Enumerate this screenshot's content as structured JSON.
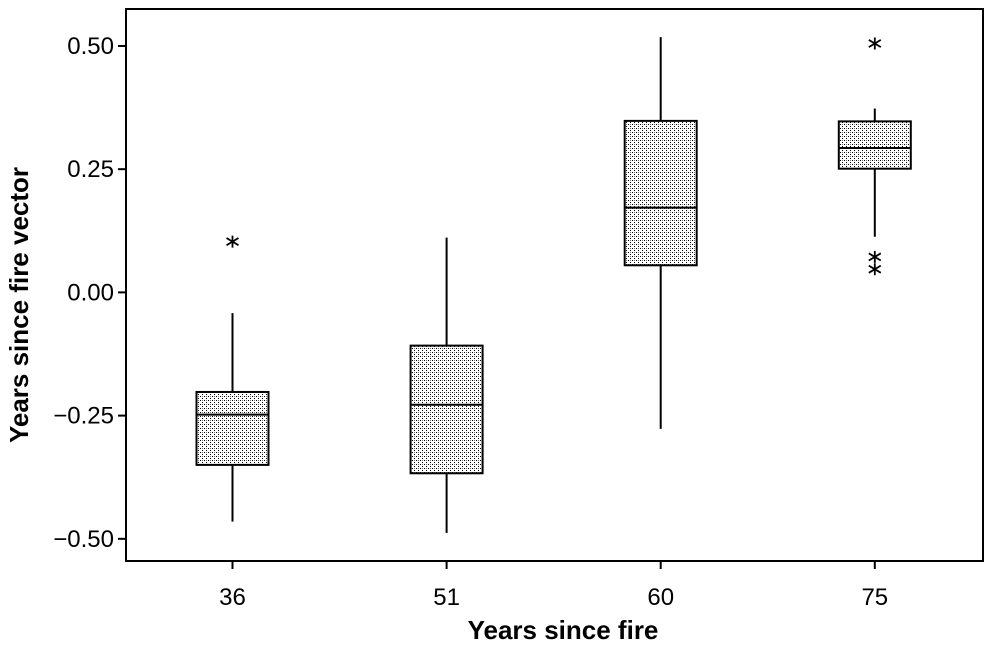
{
  "chart_data": {
    "type": "boxplot",
    "title": "",
    "xlabel": "Years since fire",
    "ylabel": "Years since fire vector",
    "categories": [
      "36",
      "51",
      "60",
      "75"
    ],
    "ylim": [
      -0.545,
      0.575
    ],
    "yticks": [
      0.5,
      0.25,
      0.0,
      -0.25,
      -0.5
    ],
    "ytick_labels": [
      "0.50",
      "0.25",
      "0.00",
      "−0.25",
      "−0.50"
    ],
    "grid": false,
    "legend": "none",
    "boxes": [
      {
        "category": "36",
        "whisker_low": -0.465,
        "q1": -0.35,
        "median": -0.248,
        "q3": -0.202,
        "whisker_high": -0.042,
        "outliers": [
          0.103
        ]
      },
      {
        "category": "51",
        "whisker_low": -0.488,
        "q1": -0.367,
        "median": -0.228,
        "q3": -0.108,
        "whisker_high": 0.111,
        "outliers": []
      },
      {
        "category": "60",
        "whisker_low": -0.277,
        "q1": 0.055,
        "median": 0.172,
        "q3": 0.348,
        "whisker_high": 0.518,
        "outliers": []
      },
      {
        "category": "75",
        "whisker_low": 0.113,
        "q1": 0.251,
        "median": 0.293,
        "q3": 0.347,
        "whisker_high": 0.373,
        "outliers": [
          0.505,
          0.072,
          0.047
        ]
      }
    ],
    "colors": {
      "box_fill": "#d9d9d9",
      "stroke": "#000000",
      "background": "#ffffff"
    }
  }
}
